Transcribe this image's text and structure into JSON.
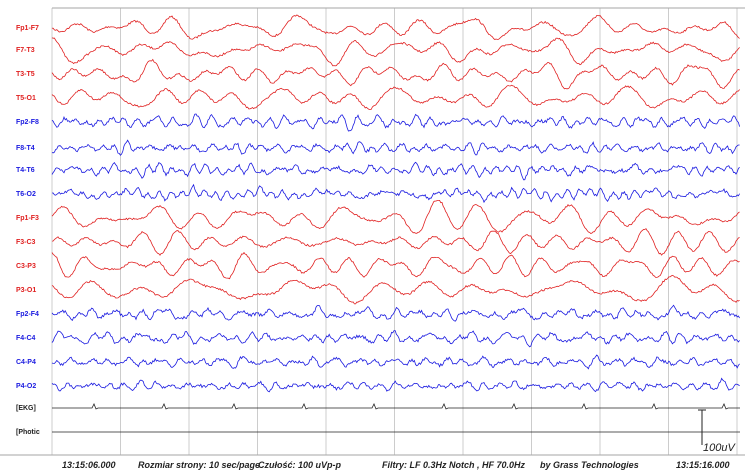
{
  "channels": [
    {
      "label": "Fp1-F7",
      "color": "#e02020"
    },
    {
      "label": "F7-T3",
      "color": "#e02020"
    },
    {
      "label": "T3-T5",
      "color": "#e02020"
    },
    {
      "label": "T5-O1",
      "color": "#e02020"
    },
    {
      "label": "Fp2-F8",
      "color": "#1a1ae0"
    },
    {
      "label": "F8-T4",
      "color": "#1a1ae0"
    },
    {
      "label": "T4-T6",
      "color": "#1a1ae0"
    },
    {
      "label": "T6-O2",
      "color": "#1a1ae0"
    },
    {
      "label": "Fp1-F3",
      "color": "#e02020"
    },
    {
      "label": "F3-C3",
      "color": "#e02020"
    },
    {
      "label": "C3-P3",
      "color": "#e02020"
    },
    {
      "label": "P3-O1",
      "color": "#e02020"
    },
    {
      "label": "Fp2-F4",
      "color": "#1a1ae0"
    },
    {
      "label": "F4-C4",
      "color": "#1a1ae0"
    },
    {
      "label": "C4-P4",
      "color": "#1a1ae0"
    },
    {
      "label": "P4-O2",
      "color": "#1a1ae0"
    },
    {
      "label": "[EKG]",
      "color": "#222222"
    },
    {
      "label": "[Photic",
      "color": "#222222"
    }
  ],
  "footer": {
    "start_time": "13:15:06.000",
    "page_size": "Rozmiar strony: 10 sec/page",
    "sensitivity": "Czułość: 100 uVp-p",
    "filters": "Filtry: LF 0.3Hz Notch , HF 70.0Hz",
    "vendor": "by Grass Technologies",
    "end_time": "13:15:16.000"
  },
  "scale_label": "100uV"
}
